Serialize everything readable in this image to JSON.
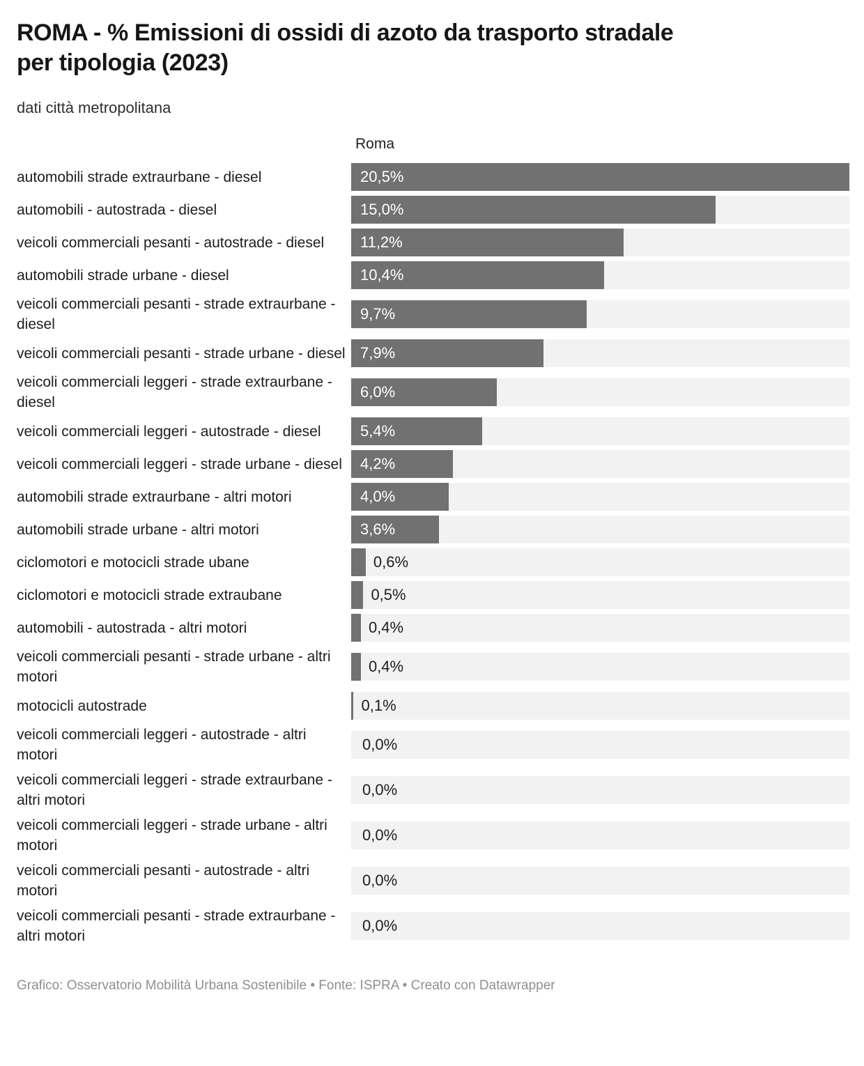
{
  "header": {
    "title": "ROMA - % Emissioni di ossidi di azoto da trasporto stradale\nper tipologia (2023)",
    "subtitle": "dati città metropolitana",
    "column_header": "Roma"
  },
  "chart_data": {
    "type": "bar",
    "orientation": "horizontal",
    "title": "ROMA - % Emissioni di ossidi di azoto da trasporto stradale per tipologia (2023)",
    "subtitle": "dati città metropolitana",
    "column_header": "Roma",
    "unit": "%",
    "xlim": [
      0,
      20.5
    ],
    "grid": false,
    "bar_color": "#717171",
    "track_color": "#f2f2f2",
    "categories": [
      "automobili strade extraurbane - diesel",
      "automobili - autostrada - diesel",
      "veicoli commerciali pesanti - autostrade - diesel",
      "automobili strade urbane - diesel",
      "veicoli commerciali pesanti - strade extraurbane - diesel",
      "veicoli commerciali pesanti - strade urbane - diesel",
      "veicoli commerciali leggeri - strade extraurbane - diesel",
      "veicoli commerciali leggeri - autostrade - diesel",
      "veicoli commerciali leggeri - strade urbane - diesel",
      "automobili strade extraurbane - altri motori",
      "automobili strade urbane - altri motori",
      "ciclomotori e motocicli strade ubane",
      "ciclomotori e motocicli strade extraubane",
      "automobili - autostrada - altri motori",
      "veicoli commerciali pesanti - strade urbane - altri motori",
      "motocicli autostrade",
      "veicoli commerciali leggeri - autostrade - altri motori",
      "veicoli commerciali leggeri - strade extraurbane - altri motori",
      "veicoli commerciali leggeri - strade urbane - altri motori",
      "veicoli commerciali pesanti - autostrade - altri motori",
      "veicoli commerciali pesanti - strade extraurbane - altri motori"
    ],
    "values": [
      20.5,
      15.0,
      11.2,
      10.4,
      9.7,
      7.9,
      6.0,
      5.4,
      4.2,
      4.0,
      3.6,
      0.6,
      0.5,
      0.4,
      0.4,
      0.1,
      0.0,
      0.0,
      0.0,
      0.0,
      0.0
    ],
    "value_labels": [
      "20,5%",
      "15,0%",
      "11,2%",
      "10,4%",
      "9,7%",
      "7,9%",
      "6,0%",
      "5,4%",
      "4,2%",
      "4,0%",
      "3,6%",
      "0,6%",
      "0,5%",
      "0,4%",
      "0,4%",
      "0,1%",
      "0,0%",
      "0,0%",
      "0,0%",
      "0,0%",
      "0,0%"
    ]
  },
  "footer": {
    "text": "Grafico: Osservatorio Mobilità Urbana Sostenibile • Fonte: ISPRA • Creato con Datawrapper"
  }
}
